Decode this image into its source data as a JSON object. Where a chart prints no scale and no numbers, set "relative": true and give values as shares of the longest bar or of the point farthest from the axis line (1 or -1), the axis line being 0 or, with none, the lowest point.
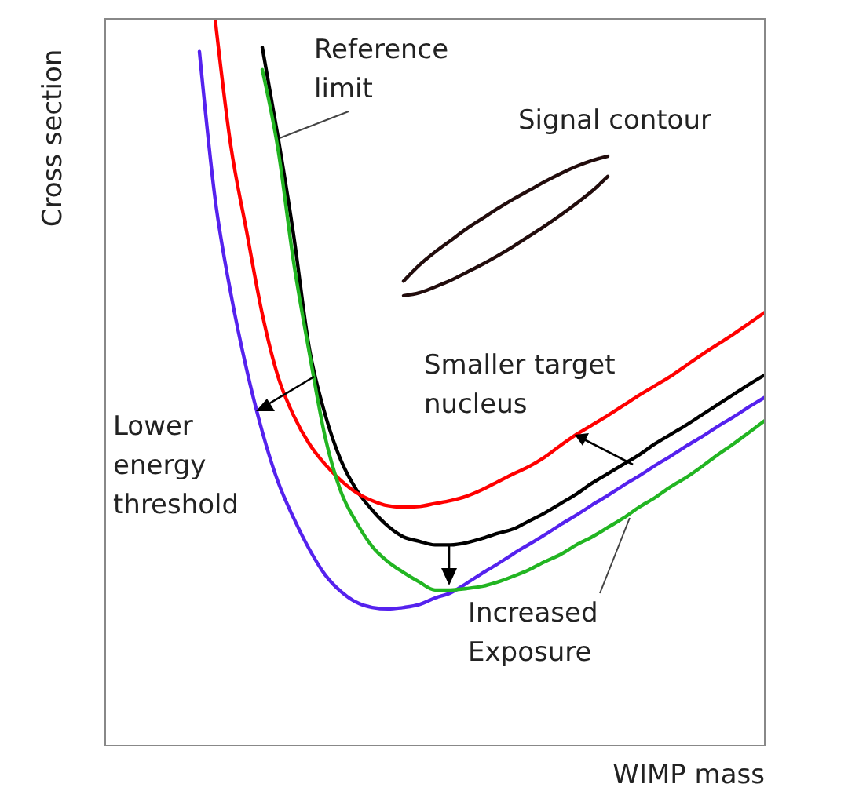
{
  "chart_data": {
    "type": "line",
    "relative": true,
    "xlabel": "WIMP mass",
    "ylabel": "Cross section",
    "categories": [
      null,
      null,
      null,
      null,
      null,
      null,
      null,
      null,
      null,
      null,
      null,
      null,
      null,
      null,
      null,
      null,
      null,
      null,
      null,
      null,
      null,
      null,
      null,
      null,
      null,
      null,
      null,
      null,
      null,
      null,
      null,
      null,
      null,
      null,
      null,
      null,
      null,
      null,
      null,
      null,
      null,
      null,
      null
    ],
    "series": [
      {
        "color": "#000000",
        "values": [
          null,
          null,
          null,
          null,
          null,
          null,
          null,
          null,
          null,
          null,
          0.961,
          0.838,
          0.702,
          0.546,
          0.456,
          0.393,
          0.352,
          0.324,
          0.302,
          0.287,
          0.281,
          0.276,
          0.276,
          0.279,
          0.285,
          0.292,
          0.298,
          0.309,
          0.32,
          0.333,
          0.346,
          0.361,
          0.374,
          0.387,
          0.4,
          0.415,
          0.428,
          0.441,
          0.455,
          0.469,
          0.483,
          0.497,
          0.51
        ]
      },
      {
        "color": "#ff0000",
        "values": [
          null,
          null,
          null,
          null,
          null,
          null,
          null,
          1,
          0.825,
          0.708,
          0.594,
          0.508,
          0.454,
          0.415,
          0.387,
          0.365,
          0.348,
          0.337,
          0.33,
          0.328,
          0.329,
          0.333,
          0.337,
          0.343,
          0.352,
          0.363,
          0.374,
          0.384,
          0.397,
          0.413,
          0.428,
          0.441,
          0.454,
          0.468,
          0.482,
          0.495,
          0.508,
          0.523,
          0.538,
          0.552,
          0.566,
          0.581,
          0.596
        ]
      },
      {
        "color": "#5522ee",
        "values": [
          null,
          null,
          null,
          null,
          null,
          null,
          0.955,
          0.752,
          0.622,
          0.518,
          0.432,
          0.363,
          0.313,
          0.27,
          0.235,
          0.212,
          0.197,
          0.19,
          0.188,
          0.19,
          0.194,
          0.203,
          0.21,
          0.223,
          0.237,
          0.25,
          0.264,
          0.277,
          0.29,
          0.304,
          0.317,
          0.331,
          0.344,
          0.358,
          0.371,
          0.385,
          0.398,
          0.412,
          0.425,
          0.439,
          0.452,
          0.466,
          0.479
        ]
      },
      {
        "color": "#22b522",
        "values": [
          null,
          null,
          null,
          null,
          null,
          null,
          null,
          null,
          null,
          null,
          0.93,
          0.821,
          0.665,
          0.54,
          0.425,
          0.35,
          0.307,
          0.274,
          0.253,
          0.238,
          0.225,
          0.214,
          0.214,
          0.216,
          0.219,
          0.225,
          0.233,
          0.242,
          0.253,
          0.263,
          0.276,
          0.287,
          0.3,
          0.313,
          0.328,
          0.341,
          0.356,
          0.369,
          0.384,
          0.4,
          0.415,
          0.431,
          0.447
        ]
      },
      {
        "color": "#220c0c",
        "values": [
          null,
          null,
          null,
          null,
          null,
          null,
          null,
          null,
          null,
          null,
          null,
          null,
          null,
          null,
          null,
          null,
          null,
          null,
          null,
          0.639,
          0.661,
          0.679,
          0.695,
          0.711,
          0.725,
          0.739,
          0.752,
          0.764,
          0.776,
          0.787,
          0.797,
          0.805,
          0.811,
          null,
          null,
          null,
          null,
          null,
          null,
          null,
          null,
          null,
          null
        ]
      },
      {
        "color": "#220c0c",
        "values": [
          null,
          null,
          null,
          null,
          null,
          null,
          null,
          null,
          null,
          null,
          null,
          null,
          null,
          null,
          null,
          null,
          null,
          null,
          null,
          0.619,
          0.623,
          0.631,
          0.64,
          0.651,
          0.662,
          0.674,
          0.687,
          0.701,
          0.715,
          0.73,
          0.746,
          0.763,
          0.783,
          null,
          null,
          null,
          null,
          null,
          null,
          null,
          null,
          null,
          null
        ]
      }
    ],
    "annotations": [
      "Reference limit",
      "Signal contour",
      "Smaller target nucleus",
      "Lower energy threshold",
      "Increased Exposure"
    ]
  }
}
